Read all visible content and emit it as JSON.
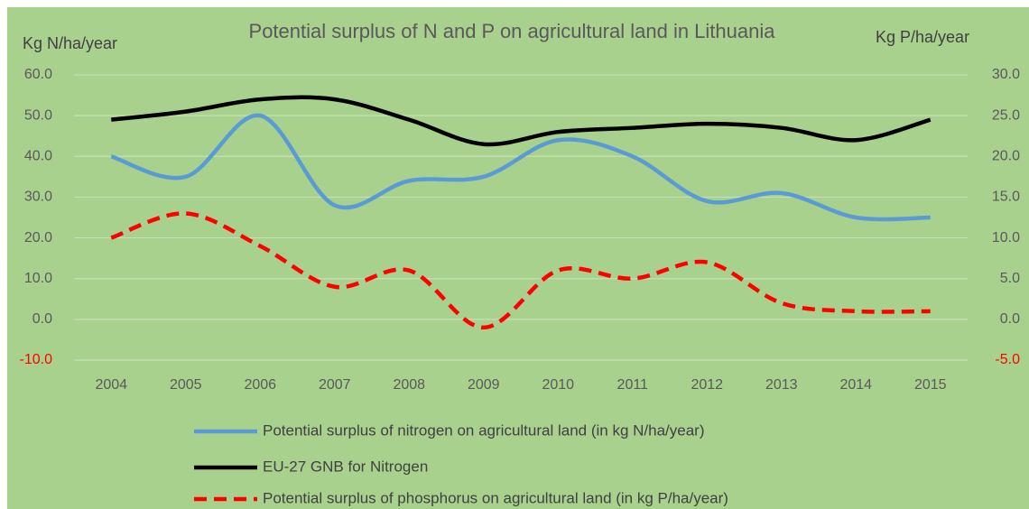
{
  "chart_data": {
    "type": "line",
    "title": "Potential surplus of N and P on agricultural land in Lithuania",
    "y_label": "Kg N/ha/year",
    "y2_label": "Kg P/ha/year",
    "categories": [
      "2004",
      "2005",
      "2006",
      "2007",
      "2008",
      "2009",
      "2010",
      "2011",
      "2012",
      "2013",
      "2014",
      "2015"
    ],
    "series": [
      {
        "name": "Potential surplus of nitrogen on agricultural land (in kg N/ha/year)",
        "color": "#5b9bd5",
        "dash": false,
        "values": [
          40,
          35,
          50,
          28,
          34,
          35,
          44,
          40,
          29,
          31,
          25,
          25
        ]
      },
      {
        "name": "EU-27 GNB for Nitrogen",
        "color": "#000000",
        "dash": false,
        "values": [
          49,
          51,
          54,
          54,
          49,
          43,
          46,
          47,
          48,
          47,
          44,
          49
        ]
      },
      {
        "name": "Potential surplus of phosphorus on agricultural land (in kg P/ha/year)",
        "color": "#ff0000",
        "dash": true,
        "axis": "y2",
        "values": [
          10,
          13,
          9,
          4,
          6,
          -1,
          6,
          5,
          7,
          2,
          1,
          1
        ]
      }
    ],
    "ylim": [
      -10,
      60
    ],
    "yticks": [
      {
        "value": -10,
        "label": "-10.0"
      },
      {
        "value": 0,
        "label": "0.0"
      },
      {
        "value": 10,
        "label": "10.0"
      },
      {
        "value": 20,
        "label": "20.0"
      },
      {
        "value": 30,
        "label": "30.0"
      },
      {
        "value": 40,
        "label": "40.0"
      },
      {
        "value": 50,
        "label": "50.0"
      },
      {
        "value": 60,
        "label": "60.0"
      }
    ],
    "y2lim": [
      -5,
      30
    ],
    "y2ticks": [
      {
        "value": -5,
        "label": "-5.0"
      },
      {
        "value": 0,
        "label": "0.0"
      },
      {
        "value": 5,
        "label": "5.0"
      },
      {
        "value": 10,
        "label": "10.0"
      },
      {
        "value": 15,
        "label": "15.0"
      },
      {
        "value": 20,
        "label": "20.0"
      },
      {
        "value": 25,
        "label": "25.0"
      },
      {
        "value": 30,
        "label": "30.0"
      }
    ],
    "grid": true,
    "smooth": true,
    "legend": "bottom",
    "background": "#a9d18e",
    "negative_tick_color": "#ff0000"
  }
}
